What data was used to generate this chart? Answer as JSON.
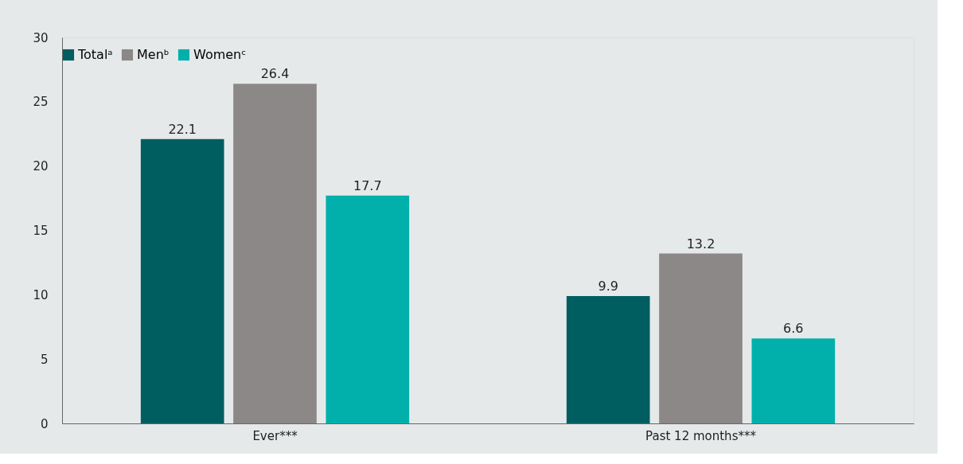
{
  "chart_data": {
    "type": "bar",
    "categories": [
      "Ever***",
      "Past 12 months***"
    ],
    "series": [
      {
        "name": "Totalᵃ",
        "color": "#005e60",
        "values": [
          22.1,
          9.9
        ]
      },
      {
        "name": "Menᵇ",
        "color": "#8c8887",
        "values": [
          26.4,
          13.2
        ]
      },
      {
        "name": "Womenᶜ",
        "color": "#02b0ab",
        "values": [
          17.7,
          6.6
        ]
      }
    ],
    "ylim": [
      0,
      30
    ],
    "yticks": [
      0,
      5,
      10,
      15,
      20,
      25,
      30
    ],
    "grid": false,
    "legend": "top",
    "data_labels": true
  }
}
